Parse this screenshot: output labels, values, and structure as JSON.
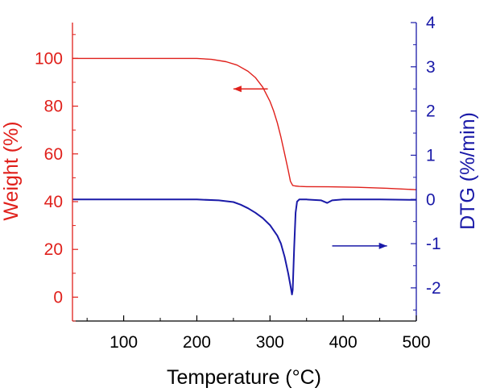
{
  "chart_data": {
    "type": "line",
    "xlabel": "Temperature (°C)",
    "ylabel_left": "Weight (%)",
    "ylabel_right": "DTG (%/min)",
    "xlim": [
      30,
      500
    ],
    "ylim_left": [
      -10,
      115
    ],
    "ylim_right": [
      -2.75,
      4.0
    ],
    "x_ticks": [
      100,
      200,
      300,
      400,
      500
    ],
    "y_ticks_left": [
      0,
      20,
      40,
      60,
      80,
      100
    ],
    "y_ticks_right": [
      -2,
      -1,
      0,
      1,
      2,
      3,
      4
    ],
    "grid": false,
    "colors": {
      "weight": "#e0201b",
      "dtg": "#1a1aa8",
      "axis": "#000000"
    },
    "series": [
      {
        "axis": "left",
        "x": [
          30,
          100,
          150,
          200,
          220,
          240,
          255,
          270,
          280,
          290,
          300,
          305,
          310,
          315,
          320,
          325,
          328,
          331,
          334,
          340,
          350,
          380,
          420,
          460,
          500
        ],
        "values": [
          100,
          100,
          100,
          100,
          99.6,
          98.6,
          97.2,
          94.6,
          92,
          88,
          82,
          78,
          73,
          67,
          60,
          53,
          48.5,
          46.8,
          46.6,
          46.4,
          46.3,
          46.2,
          46,
          45.6,
          45
        ]
      },
      {
        "axis": "right",
        "x": [
          30,
          100,
          150,
          200,
          230,
          250,
          260,
          270,
          280,
          290,
          300,
          310,
          315,
          320,
          325,
          328,
          330,
          331,
          333,
          335,
          337,
          340,
          350,
          370,
          378,
          385,
          400,
          450,
          500
        ],
        "values": [
          0,
          0,
          0,
          0,
          -0.02,
          -0.06,
          -0.12,
          -0.2,
          -0.3,
          -0.42,
          -0.58,
          -0.82,
          -1.0,
          -1.3,
          -1.68,
          -1.95,
          -2.15,
          -2.05,
          -1.1,
          -0.3,
          -0.05,
          0,
          0,
          -0.02,
          -0.08,
          -0.02,
          0,
          0,
          -0.01
        ]
      }
    ],
    "annotations": [
      {
        "type": "arrow",
        "color": "#e0201b",
        "from": [
          297,
          2.5
        ],
        "to": [
          250,
          2.5
        ],
        "axis": "right",
        "text": ""
      },
      {
        "type": "arrow",
        "color": "#1a1aa8",
        "from": [
          385,
          -1.05
        ],
        "to": [
          460,
          -1.05
        ],
        "axis": "right",
        "text": ""
      }
    ]
  }
}
